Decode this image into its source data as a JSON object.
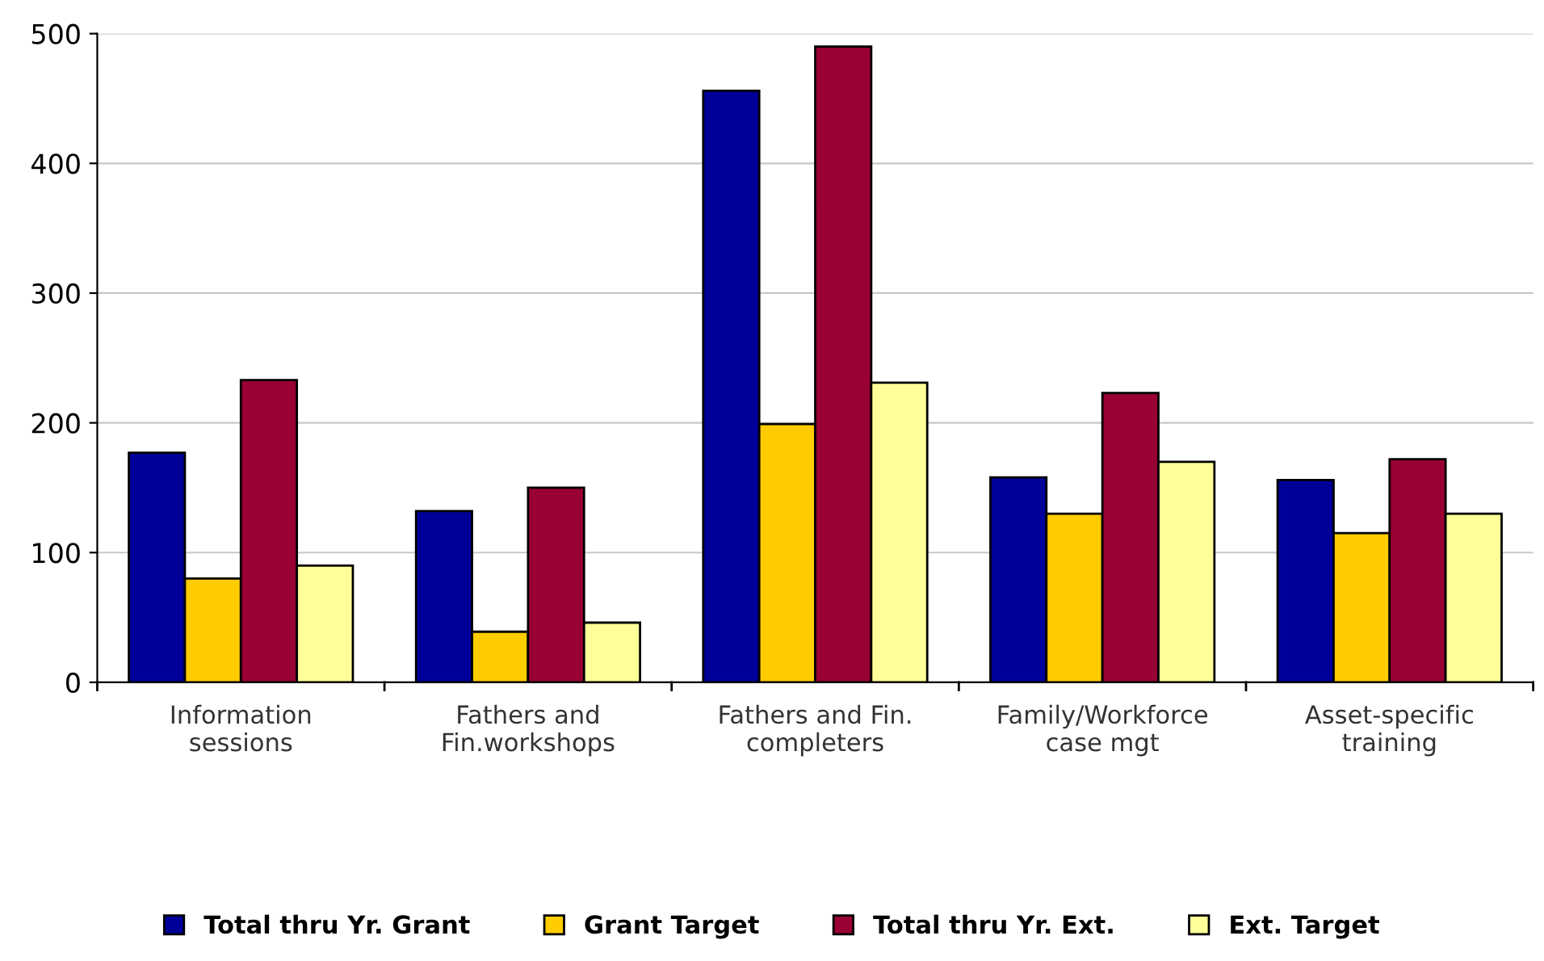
{
  "chart_data": {
    "type": "bar",
    "categories": [
      "Information\nsessions",
      "Fathers and\nFin.workshops",
      "Fathers and Fin.\ncompleters",
      "Family/Workforce\ncase mgt",
      "Asset-specific\ntraining"
    ],
    "series": [
      {
        "name": "Total thru Yr. Grant",
        "color": "#000099",
        "values": [
          177,
          132,
          456,
          158,
          156
        ]
      },
      {
        "name": "Grant Target",
        "color": "#ffcc00",
        "values": [
          80,
          39,
          199,
          130,
          115
        ]
      },
      {
        "name": "Total thru Yr. Ext.",
        "color": "#990033",
        "values": [
          233,
          150,
          490,
          223,
          172
        ]
      },
      {
        "name": "Ext. Target",
        "color": "#ffff99",
        "values": [
          90,
          46,
          231,
          170,
          130
        ]
      }
    ],
    "ylim": [
      0,
      500
    ],
    "yticks": [
      0,
      100,
      200,
      300,
      400,
      500
    ],
    "grid": "y",
    "legend": "bottom"
  }
}
